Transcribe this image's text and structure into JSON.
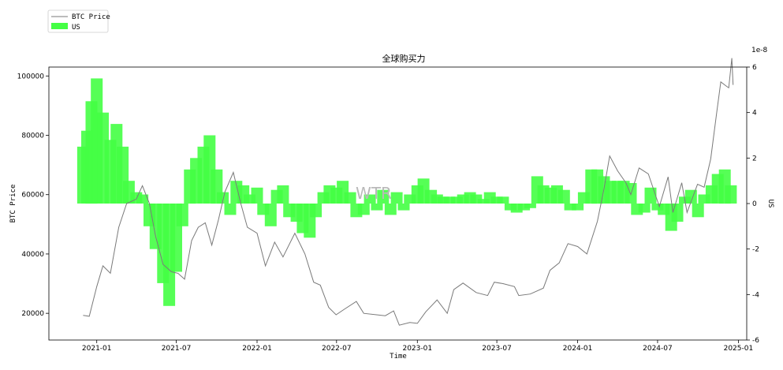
{
  "chart_data": {
    "type": "line+bar",
    "title": "全球购买力",
    "xlabel": "Time",
    "ylabel_left": "BTC Price",
    "ylabel_right": "US",
    "right_axis_multiplier": "1e-8",
    "watermark": "WTR",
    "legend": {
      "placement": "top-left",
      "entries": [
        "BTC Price",
        "US"
      ]
    },
    "x_ticks": [
      "2021-01",
      "2021-07",
      "2022-01",
      "2022-07",
      "2023-01",
      "2023-07",
      "2024-01",
      "2024-07",
      "2025-01"
    ],
    "x_range": [
      "2020-09-14",
      "2025-01-20"
    ],
    "y_left": {
      "ylim": [
        11000,
        103000
      ],
      "ticks": [
        20000,
        40000,
        60000,
        80000,
        100000
      ]
    },
    "y_right": {
      "ylim": [
        -6,
        6
      ],
      "ticks": [
        -6,
        -4,
        -2,
        0,
        2,
        4,
        6
      ]
    },
    "colors": {
      "btc": "#7a7a7a",
      "us": "#44ff44"
    },
    "series": [
      {
        "name": "BTC Price",
        "kind": "line",
        "x": [
          "2020-12-01",
          "2020-12-15",
          "2021-01-01",
          "2021-01-15",
          "2021-02-01",
          "2021-02-20",
          "2021-03-10",
          "2021-04-01",
          "2021-04-15",
          "2021-05-01",
          "2021-05-15",
          "2021-06-01",
          "2021-06-20",
          "2021-07-05",
          "2021-07-20",
          "2021-08-05",
          "2021-08-20",
          "2021-09-05",
          "2021-09-20",
          "2021-10-05",
          "2021-10-20",
          "2021-11-08",
          "2021-11-25",
          "2021-12-10",
          "2022-01-01",
          "2022-01-20",
          "2022-02-10",
          "2022-03-01",
          "2022-03-28",
          "2022-04-20",
          "2022-05-10",
          "2022-05-25",
          "2022-06-13",
          "2022-06-30",
          "2022-07-20",
          "2022-08-15",
          "2022-09-01",
          "2022-09-30",
          "2022-10-20",
          "2022-11-08",
          "2022-11-21",
          "2022-12-15",
          "2023-01-01",
          "2023-01-20",
          "2023-02-15",
          "2023-03-10",
          "2023-03-25",
          "2023-04-15",
          "2023-05-15",
          "2023-06-10",
          "2023-06-25",
          "2023-07-15",
          "2023-08-10",
          "2023-08-20",
          "2023-09-15",
          "2023-10-15",
          "2023-10-30",
          "2023-11-20",
          "2023-12-10",
          "2024-01-01",
          "2024-01-22",
          "2024-02-15",
          "2024-03-01",
          "2024-03-14",
          "2024-04-01",
          "2024-04-20",
          "2024-05-01",
          "2024-05-20",
          "2024-06-10",
          "2024-07-05",
          "2024-07-25",
          "2024-08-05",
          "2024-08-25",
          "2024-09-06",
          "2024-09-30",
          "2024-10-15",
          "2024-10-30",
          "2024-11-12",
          "2024-11-22",
          "2024-12-05",
          "2024-12-10",
          "2024-12-17",
          "2024-12-20"
        ],
        "values": [
          19300,
          19000,
          29000,
          36000,
          33500,
          49000,
          57000,
          58500,
          63000,
          57000,
          46000,
          36500,
          34000,
          33500,
          31500,
          44500,
          49000,
          50500,
          43000,
          51500,
          61000,
          67500,
          57000,
          49000,
          47000,
          36000,
          44000,
          39000,
          47000,
          40000,
          30500,
          29500,
          22000,
          19500,
          21500,
          24000,
          20000,
          19500,
          19200,
          20800,
          16000,
          16900,
          16600,
          20500,
          24500,
          20000,
          28000,
          30200,
          27000,
          26000,
          30500,
          30000,
          29000,
          26000,
          26500,
          28500,
          34500,
          37000,
          43500,
          42500,
          40000,
          51000,
          62000,
          73000,
          68000,
          64000,
          60000,
          69000,
          67000,
          56000,
          66000,
          54000,
          64000,
          54000,
          63500,
          62500,
          72000,
          87000,
          98000,
          96500,
          96000,
          106000,
          97000
        ]
      },
      {
        "name": "US",
        "kind": "bar",
        "x": [
          "2020-12-01",
          "2020-12-10",
          "2020-12-20",
          "2021-01-01",
          "2021-01-15",
          "2021-02-01",
          "2021-02-15",
          "2021-03-01",
          "2021-03-15",
          "2021-04-01",
          "2021-04-15",
          "2021-05-01",
          "2021-05-15",
          "2021-06-01",
          "2021-06-15",
          "2021-07-01",
          "2021-07-15",
          "2021-08-01",
          "2021-08-15",
          "2021-09-01",
          "2021-09-15",
          "2021-10-01",
          "2021-10-15",
          "2021-11-01",
          "2021-11-15",
          "2021-12-01",
          "2021-12-15",
          "2022-01-01",
          "2022-01-15",
          "2022-02-01",
          "2022-02-15",
          "2022-03-01",
          "2022-03-15",
          "2022-04-01",
          "2022-04-15",
          "2022-05-01",
          "2022-05-15",
          "2022-06-01",
          "2022-06-15",
          "2022-07-01",
          "2022-07-15",
          "2022-08-01",
          "2022-08-15",
          "2022-09-01",
          "2022-09-15",
          "2022-10-01",
          "2022-10-15",
          "2022-11-01",
          "2022-11-15",
          "2022-12-01",
          "2022-12-15",
          "2023-01-01",
          "2023-01-15",
          "2023-02-01",
          "2023-02-15",
          "2023-03-01",
          "2023-03-15",
          "2023-04-01",
          "2023-04-15",
          "2023-05-01",
          "2023-05-15",
          "2023-06-01",
          "2023-06-15",
          "2023-07-01",
          "2023-07-15",
          "2023-08-01",
          "2023-08-15",
          "2023-09-01",
          "2023-09-15",
          "2023-10-01",
          "2023-10-15",
          "2023-11-01",
          "2023-11-15",
          "2023-12-01",
          "2023-12-15",
          "2024-01-01",
          "2024-01-15",
          "2024-02-01",
          "2024-02-15",
          "2024-03-01",
          "2024-03-15",
          "2024-04-01",
          "2024-04-15",
          "2024-05-01",
          "2024-05-15",
          "2024-06-01",
          "2024-06-15",
          "2024-07-01",
          "2024-07-15",
          "2024-08-01",
          "2024-08-15",
          "2024-09-01",
          "2024-09-15",
          "2024-10-01",
          "2024-10-15",
          "2024-11-01",
          "2024-11-15",
          "2024-12-01",
          "2024-12-15"
        ],
        "values": [
          2.5,
          3.2,
          4.5,
          5.5,
          4.0,
          2.8,
          3.5,
          2.5,
          1.0,
          0.5,
          0.4,
          -1.0,
          -2.0,
          -3.5,
          -4.5,
          -3.0,
          -1.0,
          1.5,
          2.0,
          2.5,
          3.0,
          1.5,
          0.5,
          -0.5,
          1.0,
          0.8,
          0.4,
          0.7,
          -0.5,
          -1.0,
          0.6,
          0.8,
          -0.6,
          -0.8,
          -1.3,
          -1.5,
          -0.6,
          0.5,
          0.8,
          0.7,
          1.0,
          0.5,
          -0.6,
          -0.5,
          0.4,
          -0.3,
          0.6,
          -0.5,
          0.5,
          -0.3,
          0.4,
          0.8,
          1.1,
          0.6,
          0.4,
          0.3,
          0.3,
          0.3,
          0.4,
          0.5,
          0.4,
          0.2,
          0.5,
          0.3,
          0.3,
          -0.3,
          -0.4,
          -0.3,
          -0.2,
          1.2,
          0.8,
          0.7,
          0.8,
          0.6,
          -0.3,
          -0.3,
          0.5,
          1.5,
          1.5,
          1.2,
          1.0,
          1.0,
          1.0,
          0.9,
          -0.5,
          -0.4,
          0.7,
          -0.3,
          -0.5,
          -1.2,
          -0.8,
          0.3,
          0.6,
          -0.6,
          0.4,
          0.8,
          1.3,
          1.5,
          0.8
        ]
      }
    ]
  }
}
